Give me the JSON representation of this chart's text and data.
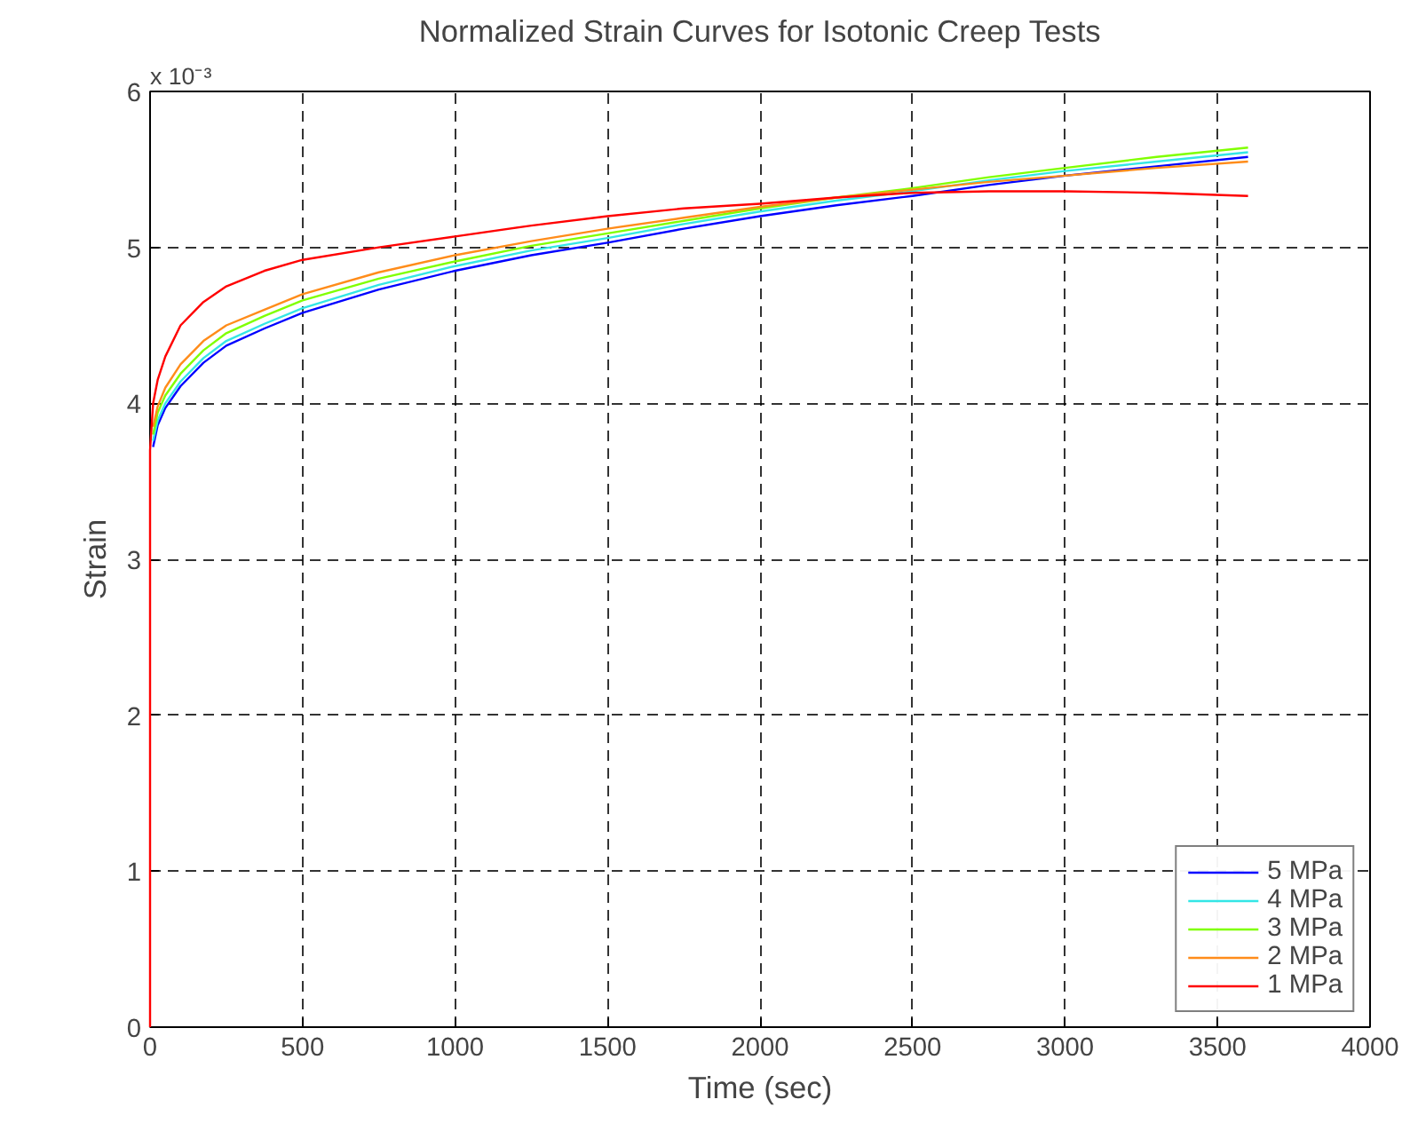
{
  "chart_data": {
    "type": "line",
    "title": "Normalized Strain Curves for Isotonic Creep Tests",
    "xlabel": "Time (sec)",
    "ylabel": "Strain",
    "annotations": [
      "x 10⁻³"
    ],
    "xlim": [
      0,
      4000
    ],
    "xticks": [
      0,
      500,
      1000,
      1500,
      2000,
      2500,
      3000,
      3500,
      4000
    ],
    "ylim": [
      0,
      6
    ],
    "yticks": [
      0,
      1,
      2,
      3,
      4,
      5,
      6
    ],
    "grid": true,
    "legend": "bottom right",
    "line_style": "solid",
    "marker": "none",
    "series": [
      {
        "name": "5 MPa",
        "color": "#0000ff",
        "x": [
          10,
          25,
          50,
          100,
          175,
          250,
          375,
          500,
          750,
          1000,
          1250,
          1500,
          1750,
          2000,
          2250,
          2500,
          2750,
          3000,
          3300,
          3600
        ],
        "values": [
          3.72,
          3.86,
          3.97,
          4.11,
          4.26,
          4.37,
          4.48,
          4.58,
          4.73,
          4.85,
          4.95,
          5.03,
          5.12,
          5.2,
          5.27,
          5.33,
          5.4,
          5.46,
          5.52,
          5.58
        ]
      },
      {
        "name": "4 MPa",
        "color": "#33e6e6",
        "x": [
          10,
          25,
          50,
          100,
          175,
          250,
          375,
          500,
          750,
          1000,
          1250,
          1500,
          1750,
          2000,
          2250,
          2500,
          2750,
          3000,
          3300,
          3600
        ],
        "values": [
          3.76,
          3.89,
          4.0,
          4.14,
          4.29,
          4.4,
          4.51,
          4.61,
          4.76,
          4.88,
          4.98,
          5.06,
          5.15,
          5.23,
          5.3,
          5.36,
          5.43,
          5.49,
          5.55,
          5.61
        ]
      },
      {
        "name": "3 MPa",
        "color": "#80ff00",
        "x": [
          10,
          25,
          50,
          100,
          175,
          250,
          375,
          500,
          750,
          1000,
          1250,
          1500,
          1750,
          2000,
          2250,
          2500,
          2750,
          3000,
          3300,
          3600
        ],
        "values": [
          3.8,
          3.94,
          4.05,
          4.19,
          4.34,
          4.45,
          4.56,
          4.66,
          4.8,
          4.91,
          5.01,
          5.09,
          5.17,
          5.25,
          5.32,
          5.38,
          5.45,
          5.51,
          5.58,
          5.64
        ]
      },
      {
        "name": "2 MPa",
        "color": "#ff8c1a",
        "x": [
          10,
          25,
          50,
          100,
          175,
          250,
          375,
          500,
          750,
          1000,
          1250,
          1500,
          1750,
          2000,
          2250,
          2500,
          2750,
          3000,
          3300,
          3600
        ],
        "values": [
          3.85,
          3.98,
          4.1,
          4.25,
          4.4,
          4.5,
          4.6,
          4.7,
          4.84,
          4.95,
          5.04,
          5.12,
          5.19,
          5.26,
          5.32,
          5.37,
          5.42,
          5.46,
          5.51,
          5.55
        ]
      },
      {
        "name": "1 MPa",
        "color": "#ff0000",
        "x": [
          0,
          0,
          10,
          25,
          50,
          100,
          175,
          250,
          375,
          500,
          750,
          1000,
          1250,
          1500,
          1750,
          2000,
          2250,
          2500,
          2750,
          3000,
          3300,
          3600
        ],
        "values": [
          0,
          3.7,
          4.0,
          4.15,
          4.3,
          4.5,
          4.65,
          4.75,
          4.85,
          4.92,
          5.0,
          5.07,
          5.14,
          5.2,
          5.25,
          5.28,
          5.32,
          5.35,
          5.36,
          5.36,
          5.35,
          5.33
        ]
      }
    ]
  }
}
